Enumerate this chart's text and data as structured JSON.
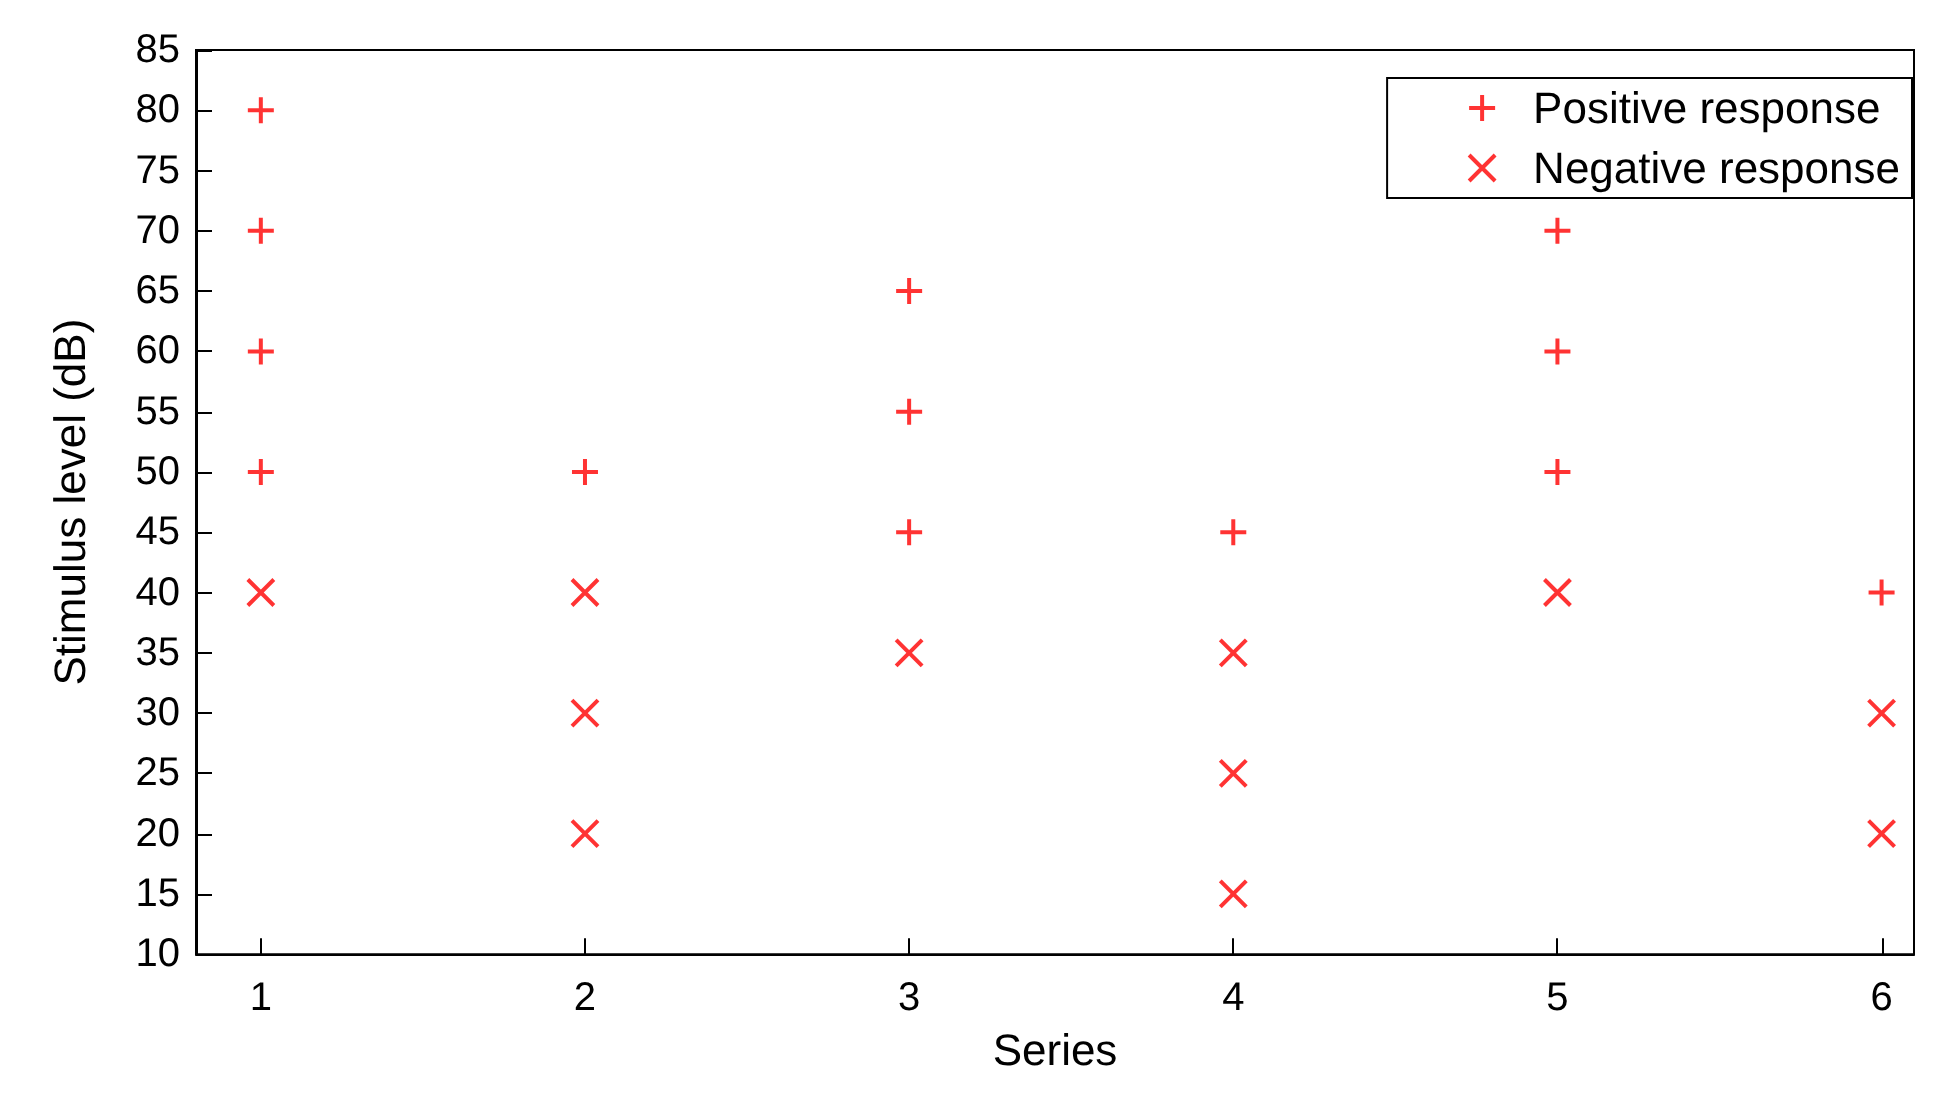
{
  "chart_data": {
    "type": "scatter",
    "xlabel": "Series",
    "ylabel": "Stimulus level (dB)",
    "xlim": [
      0.8,
      6.1
    ],
    "xticks": [
      1,
      2,
      3,
      4,
      5,
      6
    ],
    "ylim": [
      10,
      85
    ],
    "yticks": [
      10,
      15,
      20,
      25,
      30,
      35,
      40,
      45,
      50,
      55,
      60,
      65,
      70,
      75,
      80,
      85
    ],
    "grid": false,
    "legend": "top right",
    "series": [
      {
        "name": "Positive response",
        "color": "#ff0000",
        "marker": "plus",
        "x": [
          1,
          1,
          1,
          1,
          2,
          3,
          3,
          3,
          4,
          5,
          5,
          5,
          6
        ],
        "values": [
          80,
          70,
          60,
          50,
          50,
          65,
          55,
          45,
          45,
          70,
          60,
          50,
          40
        ]
      },
      {
        "name": "Negative response",
        "color": "#ff0000",
        "marker": "cross",
        "x": [
          1,
          2,
          2,
          2,
          3,
          4,
          4,
          4,
          5,
          6,
          6
        ],
        "values": [
          40,
          40,
          30,
          20,
          35,
          35,
          25,
          15,
          40,
          30,
          20
        ]
      }
    ]
  }
}
